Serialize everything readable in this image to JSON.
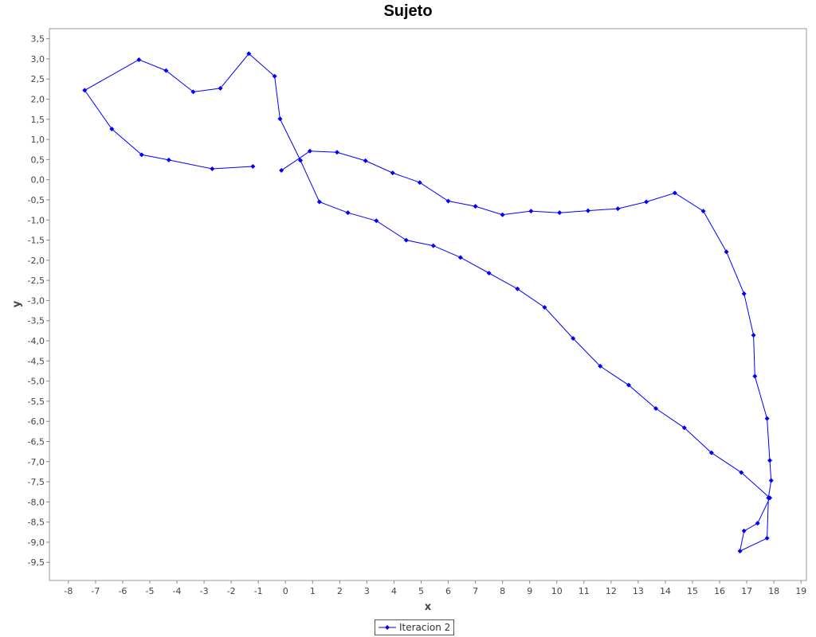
{
  "chart_data": {
    "type": "line",
    "title": "Sujeto",
    "xlabel": "x",
    "ylabel": "y",
    "xlim": [
      -8.7,
      19.2
    ],
    "ylim": [
      -9.95,
      3.75
    ],
    "x_ticks": [
      -8,
      -7,
      -6,
      -5,
      -4,
      -3,
      -2,
      -1,
      0,
      1,
      2,
      3,
      4,
      5,
      6,
      7,
      8,
      9,
      10,
      11,
      12,
      13,
      14,
      15,
      16,
      17,
      18,
      19
    ],
    "y_ticks": [
      "3,5",
      "3,0",
      "2,5",
      "2,0",
      "1,5",
      "1,0",
      "0,5",
      "0,0",
      "-0,5",
      "-1,0",
      "-1,5",
      "-2,0",
      "-2,5",
      "-3,0",
      "-3,5",
      "-4,0",
      "-4,5",
      "-5,0",
      "-5,5",
      "-6,0",
      "-6,5",
      "-7,0",
      "-7,5",
      "-8,0",
      "-8,5",
      "-9,0",
      "-9,5"
    ],
    "y_tick_values": [
      3.5,
      3.0,
      2.5,
      2.0,
      1.5,
      1.0,
      0.5,
      0.0,
      -0.5,
      -1.0,
      -1.5,
      -2.0,
      -2.5,
      -3.0,
      -3.5,
      -4.0,
      -4.5,
      -5.0,
      -5.5,
      -6.0,
      -6.5,
      -7.0,
      -7.5,
      -8.0,
      -8.5,
      -9.0,
      -9.5
    ],
    "grid": false,
    "legend_position": "bottom-center",
    "color": "#0000ff",
    "series": [
      {
        "name": "Iteracion 2",
        "points": [
          [
            -1.2,
            0.33
          ],
          [
            -2.7,
            0.27
          ],
          [
            -4.3,
            0.49
          ],
          [
            -5.3,
            0.62
          ],
          [
            -6.4,
            1.26
          ],
          [
            -7.4,
            2.22
          ],
          [
            -5.4,
            2.98
          ],
          [
            -4.4,
            2.71
          ],
          [
            -3.4,
            2.18
          ],
          [
            -2.4,
            2.27
          ],
          [
            -1.35,
            3.13
          ],
          [
            -0.4,
            2.57
          ],
          [
            -0.2,
            1.51
          ],
          [
            0.55,
            0.48
          ],
          [
            1.25,
            -0.55
          ],
          [
            2.3,
            -0.82
          ],
          [
            3.35,
            -1.02
          ],
          [
            4.45,
            -1.5
          ],
          [
            5.45,
            -1.64
          ],
          [
            6.45,
            -1.93
          ],
          [
            7.5,
            -2.32
          ],
          [
            8.55,
            -2.71
          ],
          [
            9.55,
            -3.17
          ],
          [
            10.6,
            -3.94
          ],
          [
            11.6,
            -4.63
          ],
          [
            12.65,
            -5.1
          ],
          [
            13.65,
            -5.68
          ],
          [
            14.7,
            -6.16
          ],
          [
            15.7,
            -6.78
          ],
          [
            16.8,
            -7.27
          ],
          [
            17.85,
            -7.9
          ],
          [
            17.4,
            -8.53
          ],
          [
            16.9,
            -8.72
          ],
          [
            16.75,
            -9.22
          ],
          [
            17.75,
            -8.9
          ],
          [
            17.8,
            -7.9
          ],
          [
            17.9,
            -7.47
          ],
          [
            17.85,
            -6.97
          ],
          [
            17.75,
            -5.93
          ],
          [
            17.3,
            -4.88
          ],
          [
            17.25,
            -3.86
          ],
          [
            16.9,
            -2.83
          ],
          [
            16.25,
            -1.79
          ],
          [
            15.4,
            -0.78
          ],
          [
            14.35,
            -0.33
          ],
          [
            13.3,
            -0.55
          ],
          [
            12.25,
            -0.72
          ],
          [
            11.15,
            -0.77
          ],
          [
            10.1,
            -0.82
          ],
          [
            9.05,
            -0.78
          ],
          [
            8.0,
            -0.87
          ],
          [
            7.0,
            -0.66
          ],
          [
            6.0,
            -0.53
          ],
          [
            4.95,
            -0.07
          ],
          [
            3.95,
            0.17
          ],
          [
            2.95,
            0.47
          ],
          [
            1.9,
            0.68
          ],
          [
            0.9,
            0.71
          ],
          [
            -0.15,
            0.23
          ]
        ]
      }
    ]
  }
}
